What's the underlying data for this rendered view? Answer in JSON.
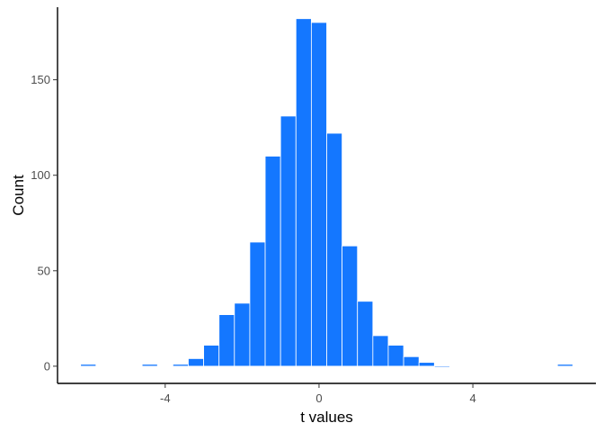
{
  "chart_data": {
    "type": "bar",
    "title": "",
    "xlabel": "t values",
    "ylabel": "Count",
    "bin_width": 0.4,
    "xlim": [
      -6.8,
      7.2
    ],
    "ylim": [
      -9,
      188
    ],
    "x_ticks": [
      -4,
      0,
      4
    ],
    "x_tick_labels": [
      "-4",
      "0",
      "4"
    ],
    "y_ticks": [
      0,
      50,
      100,
      150
    ],
    "y_tick_labels": [
      "0",
      "50",
      "100",
      "150"
    ],
    "grid": false,
    "legend": "none",
    "bar_color": "#1477FF",
    "bar_edge_color": "#FFFFFF",
    "bin_centers": [
      -6.0,
      -4.4,
      -3.6,
      -3.2,
      -2.8,
      -2.4,
      -2.0,
      -1.6,
      -1.2,
      -0.8,
      -0.4,
      0.0,
      0.4,
      0.8,
      1.2,
      1.6,
      2.0,
      2.4,
      2.8,
      3.2,
      6.4
    ],
    "values": [
      1,
      1,
      1,
      4,
      11,
      27,
      33,
      65,
      110,
      131,
      182,
      180,
      122,
      63,
      34,
      16,
      11,
      5,
      2,
      0,
      1
    ]
  }
}
